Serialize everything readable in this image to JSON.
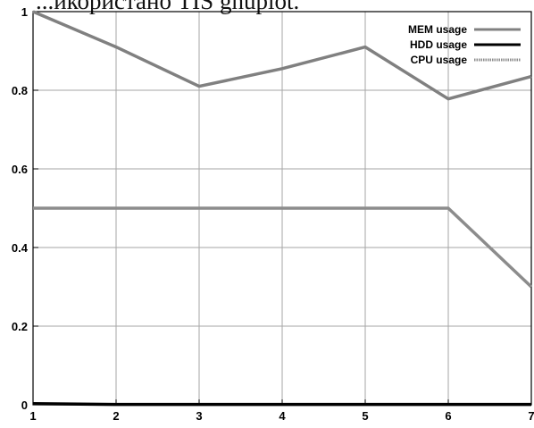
{
  "caption_fragment": "...икористано TIS gnuplot.",
  "chart_data": {
    "type": "line",
    "title": "",
    "xlabel": "",
    "ylabel": "",
    "x": [
      1,
      2,
      3,
      4,
      5,
      6,
      7
    ],
    "xlim": [
      1,
      7
    ],
    "ylim": [
      0,
      1
    ],
    "x_ticks": [
      "1",
      "2",
      "3",
      "4",
      "5",
      "6",
      "7"
    ],
    "y_ticks": [
      "0",
      "0.2",
      "0.4",
      "0.6",
      "0.8",
      "1"
    ],
    "grid": true,
    "legend_position": "top-right",
    "series": [
      {
        "name": "MEM usage",
        "color": "#808080",
        "style": "solid",
        "values": [
          1.0,
          0.91,
          0.81,
          0.855,
          0.91,
          0.778,
          0.835
        ]
      },
      {
        "name": "HDD usage",
        "color": "#000000",
        "style": "solid",
        "values": [
          0.003,
          0.001,
          0.001,
          0.001,
          0.001,
          0.001,
          0.001
        ]
      },
      {
        "name": "CPU usage",
        "color": "#8c8c8c",
        "style": "dotted",
        "values": [
          0.5,
          0.5,
          0.5,
          0.5,
          0.5,
          0.5,
          0.3
        ]
      }
    ]
  }
}
